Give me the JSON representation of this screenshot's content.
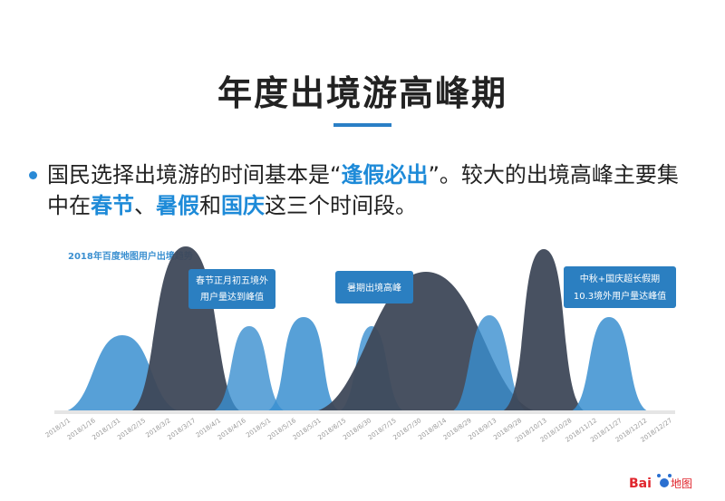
{
  "header": {
    "title": "年度出境游高峰期"
  },
  "bullet": {
    "parts": [
      "国民选择出境游的时间基本是“",
      "逢假必出",
      "”。较大的出境高峰主要集中在",
      "春节",
      "、",
      "暑假",
      "和",
      "国庆",
      "这三个时间段。"
    ],
    "highlighted": [
      1,
      3,
      5,
      7
    ]
  },
  "chart": {
    "caption": "2018年百度地图用户出境趋势",
    "dates": [
      "2018/1/1",
      "2018/1/16",
      "2018/1/31",
      "2018/2/15",
      "2018/3/2",
      "2018/3/17",
      "2018/4/1",
      "2018/4/16",
      "2018/5/1",
      "2018/5/16",
      "2018/5/31",
      "2018/6/15",
      "2018/6/30",
      "2018/7/15",
      "2018/7/30",
      "2018/8/14",
      "2018/8/29",
      "2018/9/13",
      "2018/9/28",
      "2018/10/13",
      "2018/10/28",
      "2018/11/12",
      "2018/11/27",
      "2018/12/12",
      "2018/12/27"
    ],
    "callouts": [
      {
        "lines": [
          "春节正月初五境外",
          "用户量达到峰值"
        ]
      },
      {
        "lines": [
          "暑期出境高峰"
        ]
      },
      {
        "lines": [
          "中秋+国庆超长假期",
          "10.3境外用户量达峰值"
        ]
      }
    ]
  },
  "logo": {
    "brand": "Bai",
    "product": "地图"
  }
}
